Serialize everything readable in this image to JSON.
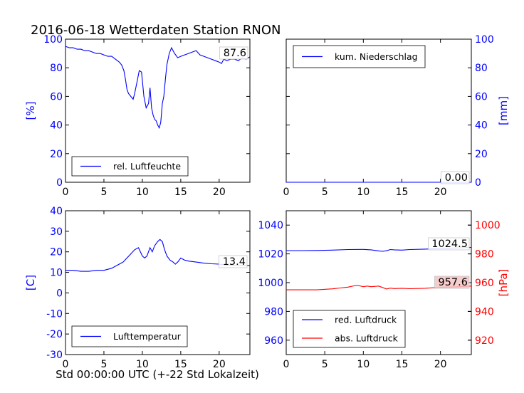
{
  "title": "2016-06-18 Wetterdaten Station RNON",
  "footer_xlabel": "Std 00:00:00 UTC (+-22 Std Lokalzeit)",
  "colors": {
    "primary": "#0000ff",
    "secondary": "#ff0000",
    "axis": "#000000"
  },
  "chart_data": [
    {
      "id": "humidity",
      "type": "line",
      "xlim": [
        0,
        24
      ],
      "ylim": [
        0,
        100
      ],
      "xticks": [
        0,
        5,
        10,
        15,
        20
      ],
      "yticks": [
        0,
        20,
        40,
        60,
        80,
        100
      ],
      "ylabel": "[%]",
      "ylabel_side": "left",
      "tick_color": "#0000ff",
      "legend": "lower-center",
      "annotation": "87.6",
      "series": [
        {
          "name": "rel. Luftfeuchte",
          "color": "#0000ff",
          "x": [
            0,
            0.5,
            1,
            1.5,
            2,
            2.5,
            3,
            3.5,
            4,
            4.5,
            5,
            5.5,
            6,
            6.5,
            7,
            7.3,
            7.6,
            7.8,
            8,
            8.2,
            8.5,
            8.8,
            9,
            9.3,
            9.6,
            9.9,
            10.2,
            10.5,
            10.8,
            11,
            11.2,
            11.4,
            11.6,
            11.8,
            12,
            12.2,
            12.4,
            12.6,
            12.8,
            13,
            13.2,
            13.5,
            13.8,
            14.2,
            14.6,
            15,
            15.5,
            16,
            16.5,
            17,
            17.5,
            18,
            18.5,
            19,
            19.5,
            20,
            20.3,
            20.6,
            21,
            21.5,
            22,
            22.5,
            23,
            23.5,
            24
          ],
          "y": [
            95,
            94,
            94,
            93,
            93,
            92,
            92,
            91,
            90,
            90,
            89,
            88,
            88,
            86,
            84,
            82,
            78,
            72,
            65,
            62,
            60,
            58,
            62,
            70,
            78,
            77,
            60,
            52,
            55,
            66,
            52,
            47,
            44,
            43,
            40,
            38,
            42,
            55,
            60,
            72,
            82,
            90,
            94,
            90,
            87,
            88,
            89,
            90,
            91,
            92,
            89,
            88,
            87,
            86,
            85,
            84,
            83,
            86,
            85,
            86,
            86,
            85,
            87,
            86,
            87.6
          ]
        }
      ]
    },
    {
      "id": "precip",
      "type": "line",
      "xlim": [
        0,
        24
      ],
      "ylim": [
        0,
        100
      ],
      "xticks": [
        0,
        5,
        10,
        15,
        20
      ],
      "yticks": [
        0,
        20,
        40,
        60,
        80,
        100
      ],
      "ylabel": "[mm]",
      "ylabel_side": "right",
      "tick_color": "#0000ff",
      "legend": "top-center",
      "annotation": "0.00",
      "series": [
        {
          "name": "kum. Niederschlag",
          "color": "#0000ff",
          "x": [
            0,
            24
          ],
          "y": [
            0,
            0
          ]
        }
      ]
    },
    {
      "id": "temperature",
      "type": "line",
      "xlim": [
        0,
        24
      ],
      "ylim": [
        -30,
        40
      ],
      "xticks": [
        0,
        5,
        10,
        15,
        20
      ],
      "yticks": [
        -30,
        -20,
        -10,
        0,
        10,
        20,
        30,
        40
      ],
      "ylabel": "[C]",
      "ylabel_side": "left",
      "tick_color": "#0000ff",
      "xlabel": "Std 00:00:00 UTC (+-22 Std Lokalzeit)",
      "legend": "lower-center",
      "annotation": "13.4",
      "series": [
        {
          "name": "Lufttemperatur",
          "color": "#0000ff",
          "x": [
            0,
            1,
            2,
            3,
            4,
            5,
            6,
            7,
            7.5,
            8,
            8.5,
            9,
            9.5,
            10,
            10.3,
            10.6,
            11,
            11.3,
            11.6,
            12,
            12.3,
            12.6,
            12.9,
            13.2,
            13.6,
            14,
            14.3,
            14.6,
            15,
            15.5,
            16,
            17,
            18,
            19,
            20,
            21,
            22,
            23,
            24
          ],
          "y": [
            11,
            11,
            10.5,
            10.5,
            11,
            11,
            12,
            14,
            15,
            17,
            19,
            21,
            22,
            18,
            17,
            18,
            22,
            20,
            23,
            25,
            26,
            25,
            21,
            18,
            16,
            15,
            14,
            15,
            17,
            16,
            15.5,
            15,
            14.5,
            14.2,
            14,
            13.5,
            13.5,
            13.4,
            13.4
          ]
        }
      ]
    },
    {
      "id": "pressure",
      "type": "line",
      "xlim": [
        0,
        24
      ],
      "ylim": [
        950,
        1050
      ],
      "yticks": [
        960,
        980,
        1000,
        1020,
        1040
      ],
      "tick_color": "#0000ff",
      "ylim_right": [
        910,
        1010
      ],
      "yticks_right": [
        920,
        940,
        960,
        980,
        1000
      ],
      "tick_color_right": "#ff0000",
      "xticks": [
        0,
        5,
        10,
        15,
        20
      ],
      "ylabel": "[hPa]",
      "ylabel_side": "right",
      "ylabel_color": "#ff0000",
      "legend": "lower-left",
      "annotations": [
        "1024.5",
        "957.6"
      ],
      "series": [
        {
          "name": "red. Luftdruck",
          "color": "#0000ff",
          "axis": "left",
          "x": [
            0,
            2,
            4,
            6,
            8,
            10,
            11,
            12,
            12.5,
            13,
            13.5,
            14,
            15,
            16,
            18,
            20,
            22,
            24
          ],
          "y": [
            1022.3,
            1022.3,
            1022.4,
            1022.6,
            1023,
            1023.1,
            1022.8,
            1022.1,
            1021.8,
            1022.2,
            1023,
            1022.8,
            1022.6,
            1023,
            1023.3,
            1023.7,
            1024.1,
            1024.5
          ]
        },
        {
          "name": "abs. Luftdruck",
          "color": "#ff0000",
          "axis": "right",
          "x": [
            0,
            2,
            4,
            6,
            7,
            8,
            9,
            9.5,
            10,
            10.5,
            11,
            12,
            13,
            13.5,
            14,
            15,
            16,
            18,
            20,
            22,
            24
          ],
          "y": [
            955,
            955,
            955,
            955.7,
            956.3,
            956.9,
            958,
            957.8,
            957.2,
            957.6,
            957.2,
            957.6,
            955.6,
            956.2,
            955.9,
            956.1,
            955.8,
            956.1,
            956.8,
            957.1,
            957.6
          ]
        }
      ]
    }
  ]
}
